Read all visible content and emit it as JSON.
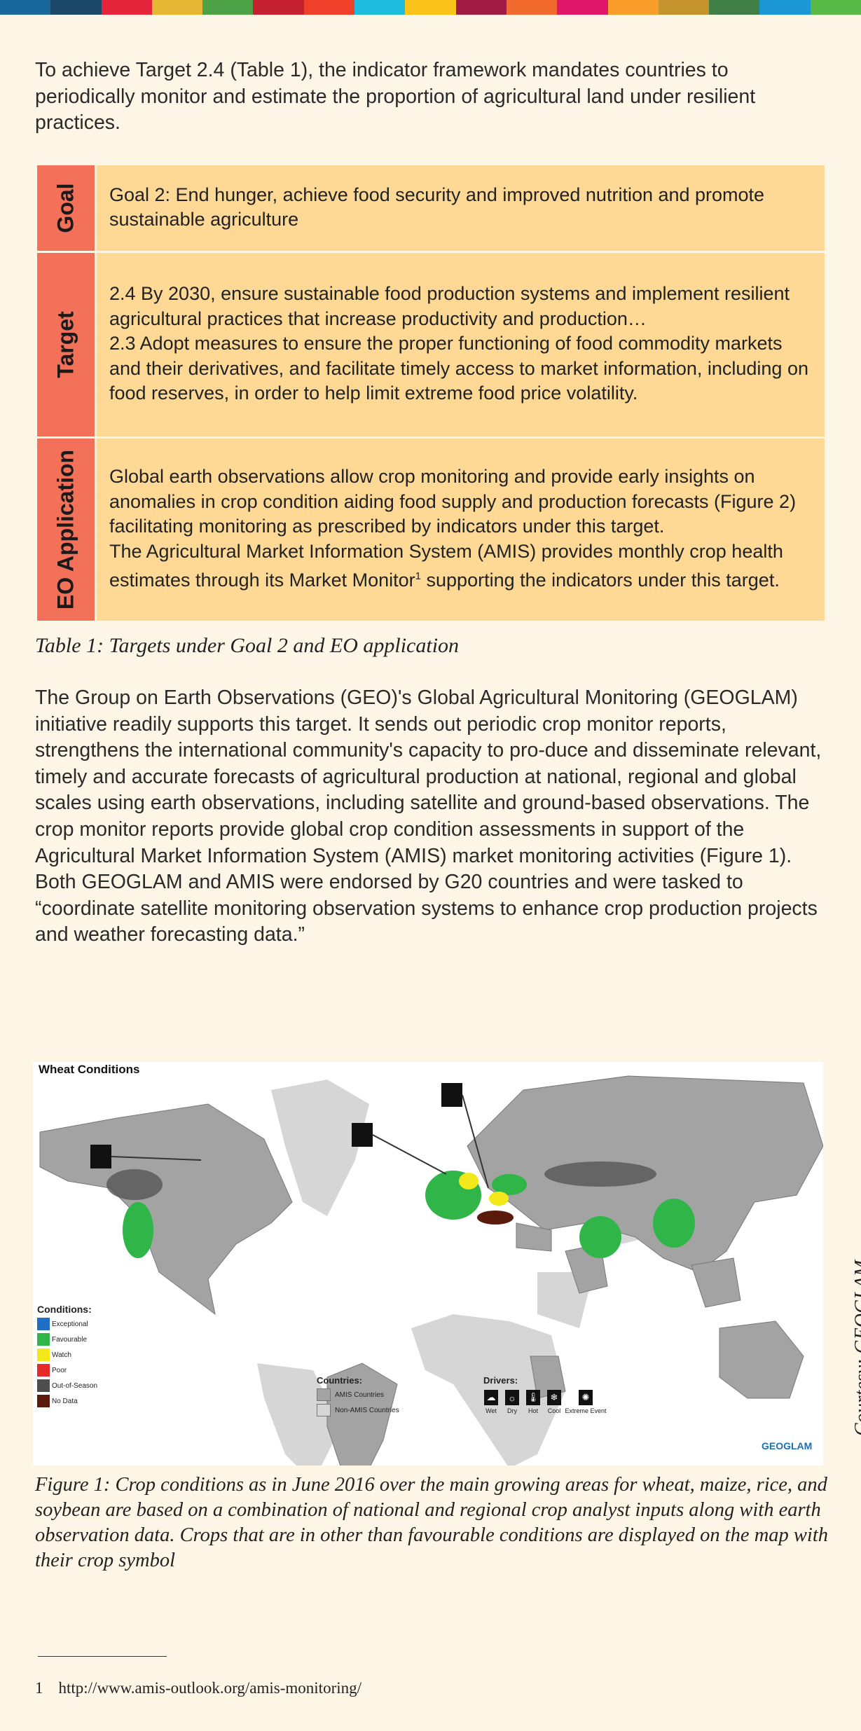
{
  "sdg_colors": [
    "#18679a",
    "#1c4869",
    "#e5253b",
    "#e5b735",
    "#4da146",
    "#c4202f",
    "#ef412a",
    "#1ebde0",
    "#fac31a",
    "#a21b44",
    "#f26a2e",
    "#de1769",
    "#f89c2a",
    "#c5942f",
    "#407f46",
    "#1a97d4",
    "#59b947"
  ],
  "intro": "To achieve Target 2.4 (Table 1), the indicator framework mandates countries to periodically monitor and estimate the proportion of agricultural land under resilient practices.",
  "table": {
    "rows": [
      {
        "label": "Goal",
        "lines": [
          "Goal 2: End hunger, achieve food security and improved nutrition and promote sustainable agriculture"
        ]
      },
      {
        "label": "Target",
        "lines": [
          "2.4 By 2030, ensure sustainable food production systems and implement resilient agricultural practices that increase productivity and production…",
          "2.3 Adopt measures to ensure the proper functioning of food commodity markets and their derivatives, and facilitate timely access to market information, including on food reserves, in order to help limit extreme food price volatility."
        ]
      },
      {
        "label": "EO Application",
        "lines": [
          "Global earth observations allow crop monitoring and provide early insights on anomalies in crop condition aiding food supply and production forecasts (Figure 2)  facilitating monitoring as prescribed by indicators under this target.",
          "The Agricultural Market Information System (AMIS) provides monthly crop health estimates through its Market Monitor",
          "1",
          " supporting the indicators under this target."
        ]
      }
    ],
    "label_color": "#f37158",
    "cell_color": "#fdd995"
  },
  "table_caption": "Table 1: Targets under Goal 2 and EO application",
  "para2": "The Group on Earth Observations (GEO)'s Global Agricultural Monitoring (GEOGLAM) initiative readily supports this target. It sends out periodic crop monitor reports, strengthens the international community's capacity to pro-duce and disseminate relevant, timely and accurate forecasts of agricultural production at national, regional and global scales using earth observations, including satellite and ground-based observations. The crop monitor reports provide global crop condition assessments in support of the Agricultural Market Information System (AMIS) market monitoring activities (Figure 1). Both GEOGLAM and AMIS were endorsed by G20 countries and were tasked to “coordinate satellite monitoring observation systems to enhance crop production projects and weather forecasting data.”",
  "map": {
    "title": "Wheat Conditions",
    "conditions_title": "Conditions:",
    "conditions": [
      {
        "label": "Exceptional",
        "color": "#1f6fc5"
      },
      {
        "label": "Favourable",
        "color": "#2fb548"
      },
      {
        "label": "Watch",
        "color": "#f2e81a"
      },
      {
        "label": "Poor",
        "color": "#e52a2a"
      },
      {
        "label": "Out-of-Season",
        "color": "#4d4d4d"
      },
      {
        "label": "No Data",
        "color": "#5a1a0c"
      }
    ],
    "countries_title": "Countries:",
    "countries": [
      {
        "label": "AMIS Countries",
        "color": "#a3a3a3"
      },
      {
        "label": "Non-AMIS Countries",
        "color": "#d6d6d6"
      }
    ],
    "drivers_title": "Drivers:",
    "drivers": [
      {
        "label": "Wet",
        "icon": "rain-cloud-icon"
      },
      {
        "label": "Dry",
        "icon": "dry-icon"
      },
      {
        "label": "Hot",
        "icon": "thermometer-icon"
      },
      {
        "label": "Cool",
        "icon": "snowflake-icon"
      },
      {
        "label": "Extreme Event",
        "icon": "cyclone-icon"
      }
    ],
    "logo": "GEOGLAM"
  },
  "courtesy": "Courtesy:  GEOGLAM",
  "figure_caption": "Figure 1: Crop conditions as in June 2016 over the main growing areas for wheat, maize, rice, and soybean are based on a combination of national and regional crop analyst inputs along with earth observation data. Crops that are in other than favourable conditions are displayed on the map with their crop symbol",
  "footnote": {
    "number": "1",
    "text": "http://www.amis-outlook.org/amis-monitoring/"
  }
}
